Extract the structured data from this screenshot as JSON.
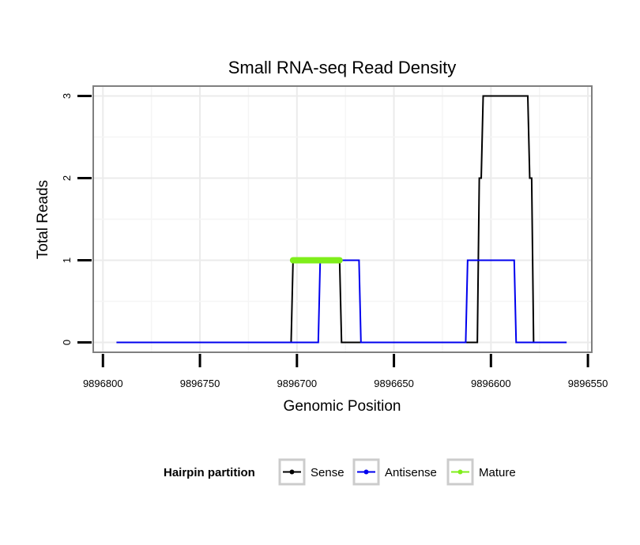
{
  "chart_data": {
    "type": "line",
    "title": "Small RNA-seq Read Density",
    "xlabel": "Genomic Position",
    "ylabel": "Total Reads",
    "x_reversed": true,
    "xlim": [
      9896805,
      9896548
    ],
    "ylim": [
      -0.12,
      3.12
    ],
    "x_ticks": [
      9896800,
      9896750,
      9896700,
      9896650,
      9896600,
      9896550
    ],
    "x_tick_labels": [
      "9896800",
      "9896750",
      "9896700",
      "9896650",
      "9896600",
      "9896550"
    ],
    "y_ticks": [
      0,
      1,
      2,
      3
    ],
    "y_tick_labels": [
      "0",
      "1",
      "2",
      "3"
    ],
    "grid": true,
    "legend": {
      "title": "Hairpin partition",
      "placement": "bottom",
      "entries": [
        "Sense",
        "Antisense",
        "Mature"
      ]
    },
    "series": [
      {
        "name": "Sense",
        "color": "#000000",
        "x": [
          9896793,
          9896703,
          9896702,
          9896678,
          9896677,
          9896607,
          9896606,
          9896605,
          9896604,
          9896581,
          9896580,
          9896579,
          9896578,
          9896561
        ],
        "y": [
          0,
          0,
          1,
          1,
          0,
          0,
          2,
          2,
          3,
          3,
          2,
          2,
          0,
          0
        ]
      },
      {
        "name": "Antisense",
        "color": "#0000ee",
        "x": [
          9896793,
          9896689,
          9896688,
          9896668,
          9896667,
          9896613,
          9896612,
          9896588,
          9896587,
          9896561
        ],
        "y": [
          0,
          0,
          1,
          1,
          0,
          0,
          1,
          1,
          0,
          0
        ]
      },
      {
        "name": "Mature",
        "color": "#7fee1a",
        "x": [
          9896702,
          9896678
        ],
        "y": [
          1,
          1
        ]
      }
    ]
  }
}
